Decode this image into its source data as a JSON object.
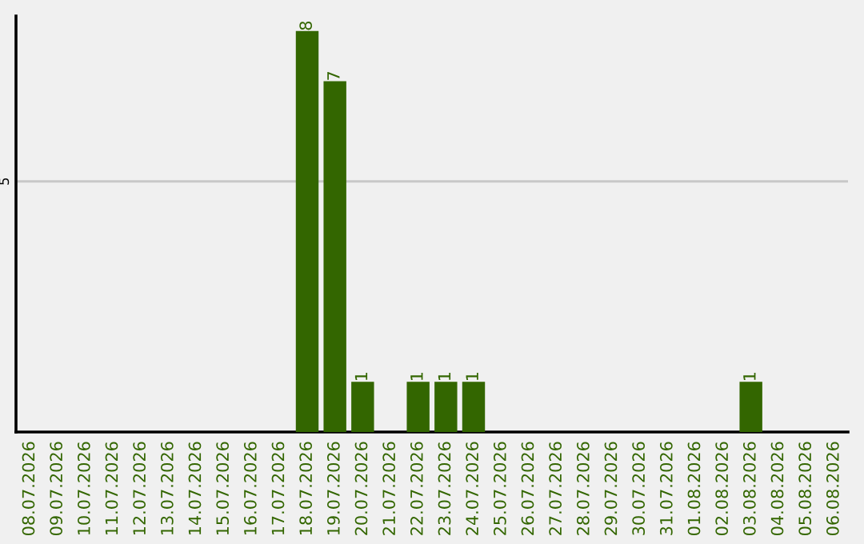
{
  "chart_data": {
    "type": "bar",
    "categories": [
      "08.07.2026",
      "09.07.2026",
      "10.07.2026",
      "11.07.2026",
      "12.07.2026",
      "13.07.2026",
      "14.07.2026",
      "15.07.2026",
      "16.07.2026",
      "17.07.2026",
      "18.07.2026",
      "19.07.2026",
      "20.07.2026",
      "21.07.2026",
      "22.07.2026",
      "23.07.2026",
      "24.07.2026",
      "25.07.2026",
      "26.07.2026",
      "27.07.2026",
      "28.07.2026",
      "29.07.2026",
      "30.07.2026",
      "31.07.2026",
      "01.08.2026",
      "02.08.2026",
      "03.08.2026",
      "04.08.2026",
      "05.08.2026",
      "06.08.2026"
    ],
    "values": [
      0,
      0,
      0,
      0,
      0,
      0,
      0,
      0,
      0,
      0,
      8,
      7,
      1,
      0,
      1,
      1,
      1,
      0,
      0,
      0,
      0,
      0,
      0,
      0,
      0,
      0,
      1,
      0,
      0,
      0
    ],
    "value_labels": [
      null,
      null,
      null,
      null,
      null,
      null,
      null,
      null,
      null,
      null,
      "8",
      "7",
      "1",
      null,
      "1",
      "1",
      "1",
      null,
      null,
      null,
      null,
      null,
      null,
      null,
      null,
      null,
      "1",
      null,
      null,
      null
    ],
    "color": "#336600",
    "ylim": [
      0,
      8.3
    ],
    "yticks": [
      5
    ],
    "grid": "y"
  }
}
